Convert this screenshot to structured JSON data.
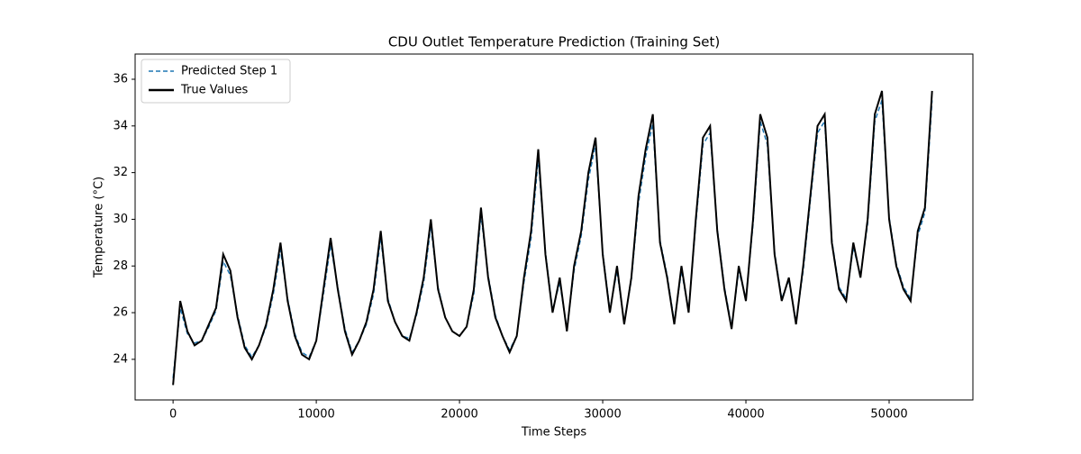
{
  "chart_data": {
    "type": "line",
    "title": "CDU Outlet Temperature Prediction (Training Set)",
    "x_label": "Time Steps",
    "y_label": "Temperature (°C)",
    "x": [
      0,
      500,
      1000,
      1500,
      2000,
      2500,
      3000,
      3500,
      4000,
      4500,
      5000,
      5500,
      6000,
      6500,
      7000,
      7500,
      8000,
      8500,
      9000,
      9500,
      10000,
      10500,
      11000,
      11500,
      12000,
      12500,
      13000,
      13500,
      14000,
      14500,
      15000,
      15500,
      16000,
      16500,
      17000,
      17500,
      18000,
      18500,
      19000,
      19500,
      20000,
      20500,
      21000,
      21500,
      22000,
      22500,
      23000,
      23500,
      24000,
      24500,
      25000,
      25500,
      26000,
      26500,
      27000,
      27500,
      28000,
      28500,
      29000,
      29500,
      30000,
      30500,
      31000,
      31500,
      32000,
      32500,
      33000,
      33500,
      34000,
      34500,
      35000,
      35500,
      36000,
      36500,
      37000,
      37500,
      38000,
      38500,
      39000,
      39500,
      40000,
      40500,
      41000,
      41500,
      42000,
      42500,
      43000,
      43500,
      44000,
      44500,
      45000,
      45500,
      46000,
      46500,
      47000,
      47500,
      48000,
      48500,
      49000,
      49500,
      50000,
      50500,
      51000,
      51500,
      52000,
      52500,
      53000
    ],
    "series": [
      {
        "name": "Predicted Step 1",
        "color": "#1f77b4",
        "dash": true,
        "values": [
          23.2,
          26.2,
          25.1,
          24.7,
          24.8,
          25.4,
          26.1,
          28.2,
          27.6,
          25.9,
          24.6,
          24.1,
          24.6,
          25.4,
          26.8,
          28.7,
          26.6,
          25.1,
          24.3,
          24.1,
          24.8,
          26.8,
          28.9,
          27.1,
          25.3,
          24.3,
          24.8,
          25.5,
          26.8,
          29.2,
          26.6,
          25.6,
          25.0,
          24.9,
          25.9,
          27.3,
          29.7,
          27.1,
          25.8,
          25.2,
          25.0,
          25.4,
          26.8,
          30.2,
          27.6,
          25.9,
          25.0,
          24.4,
          25.0,
          27.3,
          29.2,
          32.6,
          28.6,
          26.1,
          27.3,
          25.3,
          27.8,
          29.3,
          31.7,
          33.2,
          28.6,
          26.1,
          27.8,
          25.6,
          27.4,
          30.7,
          32.7,
          34.1,
          29.1,
          27.6,
          25.6,
          27.8,
          26.1,
          29.8,
          33.2,
          33.7,
          29.6,
          27.1,
          25.4,
          27.8,
          26.6,
          29.8,
          34.2,
          33.2,
          28.6,
          26.6,
          27.4,
          25.6,
          27.8,
          30.8,
          33.7,
          34.2,
          29.1,
          27.1,
          26.6,
          28.8,
          27.6,
          29.8,
          34.2,
          35.1,
          30.1,
          28.1,
          27.1,
          26.6,
          29.3,
          30.3,
          35.1
        ]
      },
      {
        "name": "True Values",
        "color": "#000000",
        "dash": false,
        "values": [
          22.9,
          26.5,
          25.2,
          24.6,
          24.8,
          25.5,
          26.2,
          28.5,
          27.8,
          25.8,
          24.5,
          24.0,
          24.6,
          25.5,
          27.0,
          29.0,
          26.5,
          25.0,
          24.2,
          24.0,
          24.8,
          27.0,
          29.2,
          27.0,
          25.2,
          24.2,
          24.8,
          25.6,
          27.0,
          29.5,
          26.5,
          25.6,
          25.0,
          24.8,
          26.0,
          27.5,
          30.0,
          27.0,
          25.8,
          25.2,
          25.0,
          25.4,
          27.0,
          30.5,
          27.5,
          25.8,
          25.0,
          24.3,
          25.0,
          27.5,
          29.5,
          33.0,
          28.5,
          26.0,
          27.5,
          25.2,
          28.0,
          29.5,
          32.0,
          33.5,
          28.5,
          26.0,
          28.0,
          25.5,
          27.5,
          31.0,
          33.0,
          34.5,
          29.0,
          27.5,
          25.5,
          28.0,
          26.0,
          30.0,
          33.5,
          34.0,
          29.5,
          27.0,
          25.3,
          28.0,
          26.5,
          30.0,
          34.5,
          33.5,
          28.5,
          26.5,
          27.5,
          25.5,
          28.0,
          31.0,
          34.0,
          34.5,
          29.0,
          27.0,
          26.5,
          29.0,
          27.5,
          30.0,
          34.5,
          35.5,
          30.0,
          28.0,
          27.0,
          26.5,
          29.5,
          30.5,
          35.5
        ]
      }
    ],
    "xlim": [
      -2650,
      55850
    ],
    "ylim": [
      22.26,
      37.08
    ],
    "xticks": [
      0,
      10000,
      20000,
      30000,
      40000,
      50000
    ],
    "yticks": [
      24,
      26,
      28,
      30,
      32,
      34,
      36
    ],
    "legend": "upper left"
  }
}
